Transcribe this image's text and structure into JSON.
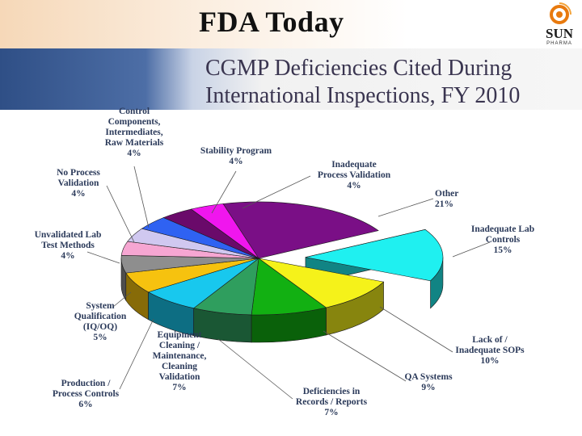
{
  "slide": {
    "title": "FDA Today"
  },
  "logo": {
    "name": "SUN",
    "sub": "PHARMA",
    "icon": "sun-logo-icon"
  },
  "chart_data": {
    "type": "pie",
    "title": "CGMP Deficiencies Cited During International Inspections, FY 2010",
    "slices": [
      {
        "label": "Other",
        "value": 21,
        "display": [
          "Other",
          "21%"
        ],
        "color": "#7a0f86"
      },
      {
        "label": "Inadequate Lab Controls",
        "value": 15,
        "display": [
          "Inadequate Lab",
          "Controls",
          "15%"
        ],
        "color": "#1ff0f0",
        "exploded": true
      },
      {
        "label": "Lack of / Inadequate SOPs",
        "value": 10,
        "display": [
          "Lack of /",
          "Inadequate SOPs",
          "10%"
        ],
        "color": "#f5f21a"
      },
      {
        "label": "QA Systems",
        "value": 9,
        "display": [
          "QA Systems",
          "9%"
        ],
        "color": "#12b012"
      },
      {
        "label": "Deficiencies in Records / Reports",
        "value": 7,
        "display": [
          "Deficiencies in",
          "Records / Reports",
          "7%"
        ],
        "color": "#2f9e5e"
      },
      {
        "label": "Equipment Cleaning / Maintenance, Cleaning Validation",
        "value": 7,
        "display": [
          "Equipment",
          "Cleaning /",
          "Maintenance,",
          "Cleaning",
          "Validation",
          "7%"
        ],
        "color": "#18c8ee"
      },
      {
        "label": "Production / Process Controls",
        "value": 6,
        "display": [
          "Production /",
          "Process Controls",
          "6%"
        ],
        "color": "#f6c20f"
      },
      {
        "label": "System Qualification (IQ/OQ)",
        "value": 5,
        "display": [
          "System",
          "Qualification",
          "(IQ/OQ)",
          "5%"
        ],
        "color": "#8e8e8e"
      },
      {
        "label": "Unvalidated Lab Test Methods",
        "value": 4,
        "display": [
          "Unvalidated Lab",
          "Test Methods",
          "4%"
        ],
        "color": "#f6a6d2"
      },
      {
        "label": "No Process Validation",
        "value": 4,
        "display": [
          "No Process",
          "Validation",
          "4%"
        ],
        "color": "#d0c8f0"
      },
      {
        "label": "Control Components, Intermediates, Raw Materials",
        "value": 4,
        "display": [
          "Control",
          "Components,",
          "Intermediates,",
          "Raw Materials",
          "4%"
        ],
        "color": "#2f62f2"
      },
      {
        "label": "Stability Program",
        "value": 4,
        "display": [
          "Stability Program",
          "4%"
        ],
        "color": "#6a0a6a"
      },
      {
        "label": "Inadequate Process Validation",
        "value": 4,
        "display": [
          "Inadequate",
          "Process Validation",
          "4%"
        ],
        "color": "#f016ee"
      }
    ]
  }
}
